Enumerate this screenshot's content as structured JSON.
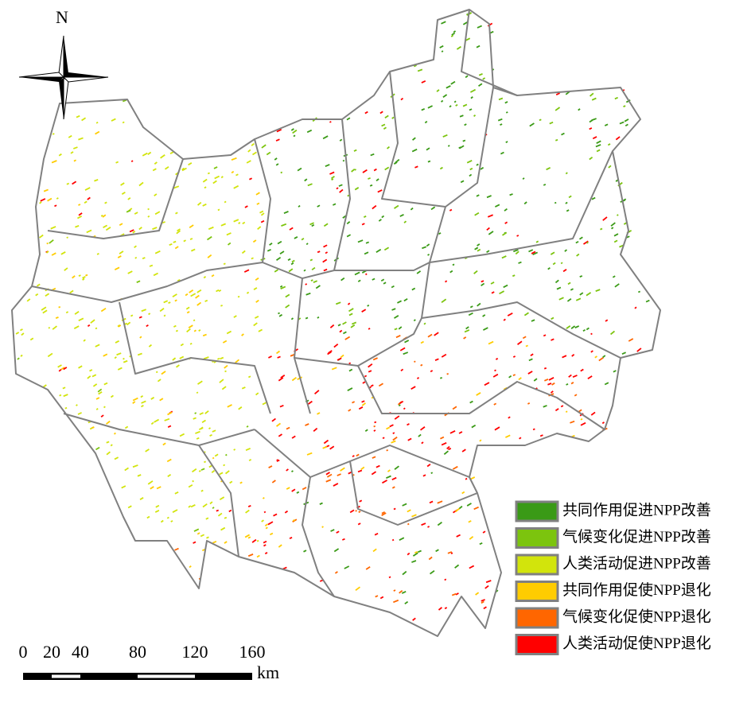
{
  "compass": {
    "label": "N"
  },
  "legend": {
    "items": [
      {
        "label": "共同作用促进NPP改善",
        "color": "#3a9a16"
      },
      {
        "label": "气候变化促进NPP改善",
        "color": "#7cc40e"
      },
      {
        "label": "人类活动促进NPP改善",
        "color": "#d2e40c"
      },
      {
        "label": "共同作用促使NPP退化",
        "color": "#ffcc00"
      },
      {
        "label": "气候变化促使NPP退化",
        "color": "#ff6600"
      },
      {
        "label": "人类活动促使NPP退化",
        "color": "#ff0000"
      }
    ]
  },
  "scale_bar": {
    "ticks": [
      0,
      20,
      40,
      80,
      120,
      160
    ],
    "unit": "km"
  }
}
